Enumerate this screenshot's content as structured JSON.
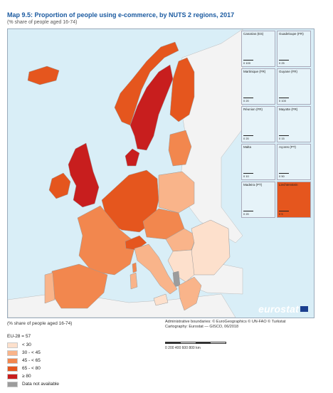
{
  "header": {
    "map_number": "Map 9.5:",
    "title": "Proportion of people using e-commerce, by NUTS 2 regions, 2017",
    "subtitle": "(% share of people aged 16-74)"
  },
  "insets": [
    {
      "label": "Canarias (ES)",
      "scale": "0  100"
    },
    {
      "label": "Guadeloupe (FR)",
      "scale": "0  25"
    },
    {
      "label": "Martinique (FR)",
      "scale": "0  20"
    },
    {
      "label": "Guyane (FR)",
      "scale": "0  100"
    },
    {
      "label": "Réunion (FR)",
      "scale": "0  20"
    },
    {
      "label": "Mayotte (FR)",
      "scale": "0  15"
    },
    {
      "label": "Malta",
      "scale": "0  10"
    },
    {
      "label": "Açores (PT)",
      "scale": "0  50"
    },
    {
      "label": "Madeira (PT)",
      "scale": "0  20"
    },
    {
      "label": "Liechtenstein",
      "scale": "0  5"
    }
  ],
  "logo": "eurostat",
  "caption_left": "(% share of people aged 16-74)",
  "caption_right": {
    "line1": "Administrative boundaries: © EuroGeographics © UN-FAO © Turkstat",
    "line2": "Cartography: Eurostat — GISCO, 06/2018"
  },
  "legend": {
    "eu_value": "EU-28 = 57",
    "items": [
      {
        "label": "< 30",
        "color": "#fde0cc"
      },
      {
        "label": "30 - < 45",
        "color": "#f9b48a"
      },
      {
        "label": "45 - < 65",
        "color": "#f2874e"
      },
      {
        "label": "65 - < 80",
        "color": "#e5561e"
      },
      {
        "label": "≥ 80",
        "color": "#c81e1e"
      },
      {
        "label": "Data not available",
        "color": "#9c9c9c"
      }
    ]
  },
  "scalebar": {
    "ticks": "0      200     400     600     800 km"
  },
  "colors": {
    "sea": "#d9eef7",
    "non_eu_land": "#f3f3f3",
    "lt30": "#fde0cc",
    "c30_45": "#f9b48a",
    "c45_65": "#f2874e",
    "c65_80": "#e5561e",
    "ge80": "#c81e1e",
    "na": "#9c9c9c"
  }
}
